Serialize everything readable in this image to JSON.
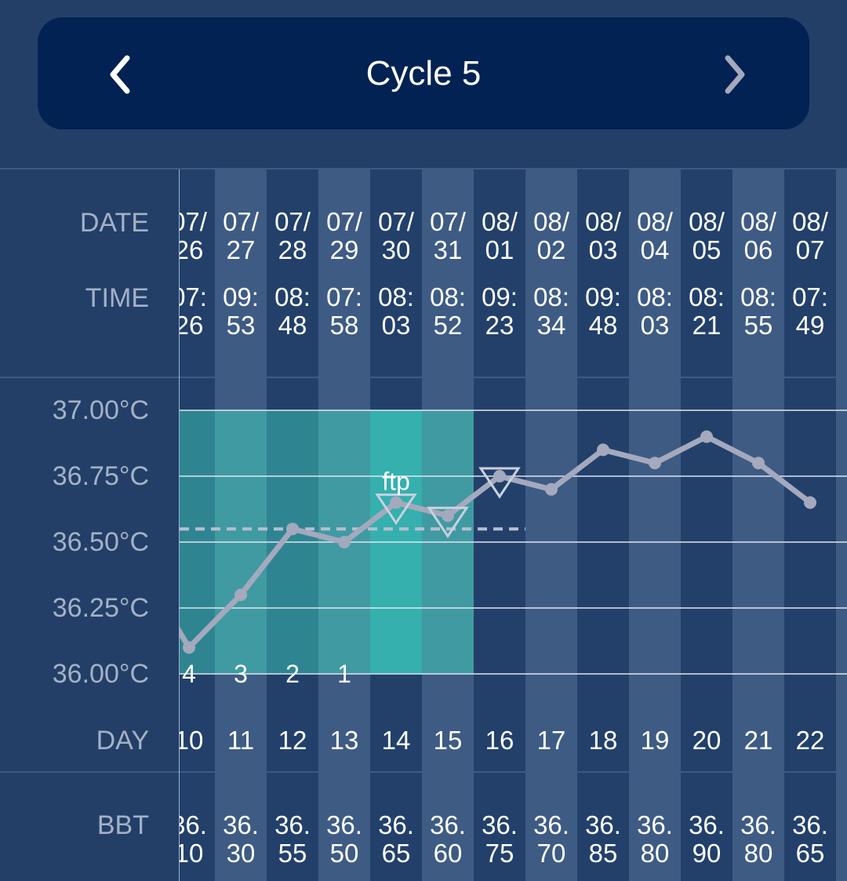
{
  "header": {
    "title": "Cycle 5",
    "prev_icon": "chevron-left-icon",
    "next_icon": "chevron-right-icon"
  },
  "row_labels": {
    "date": "DATE",
    "time": "TIME",
    "day": "DAY",
    "bbt": "BBT"
  },
  "columns": [
    {
      "date_top": "07/",
      "date_bottom": "26",
      "time_top": "07:",
      "time_bottom": "26",
      "day": "10",
      "bbt_top": "36.",
      "bbt_bottom": "10",
      "countdown": "4"
    },
    {
      "date_top": "07/",
      "date_bottom": "27",
      "time_top": "09:",
      "time_bottom": "53",
      "day": "11",
      "bbt_top": "36.",
      "bbt_bottom": "30",
      "countdown": "3"
    },
    {
      "date_top": "07/",
      "date_bottom": "28",
      "time_top": "08:",
      "time_bottom": "48",
      "day": "12",
      "bbt_top": "36.",
      "bbt_bottom": "55",
      "countdown": "2"
    },
    {
      "date_top": "07/",
      "date_bottom": "29",
      "time_top": "07:",
      "time_bottom": "58",
      "day": "13",
      "bbt_top": "36.",
      "bbt_bottom": "50",
      "countdown": "1"
    },
    {
      "date_top": "07/",
      "date_bottom": "30",
      "time_top": "08:",
      "time_bottom": "03",
      "day": "14",
      "bbt_top": "36.",
      "bbt_bottom": "65",
      "countdown": ""
    },
    {
      "date_top": "07/",
      "date_bottom": "31",
      "time_top": "08:",
      "time_bottom": "52",
      "day": "15",
      "bbt_top": "36.",
      "bbt_bottom": "60",
      "countdown": ""
    },
    {
      "date_top": "08/",
      "date_bottom": "01",
      "time_top": "09:",
      "time_bottom": "23",
      "day": "16",
      "bbt_top": "36.",
      "bbt_bottom": "75",
      "countdown": ""
    },
    {
      "date_top": "08/",
      "date_bottom": "02",
      "time_top": "08:",
      "time_bottom": "34",
      "day": "17",
      "bbt_top": "36.",
      "bbt_bottom": "70",
      "countdown": ""
    },
    {
      "date_top": "08/",
      "date_bottom": "03",
      "time_top": "09:",
      "time_bottom": "48",
      "day": "18",
      "bbt_top": "36.",
      "bbt_bottom": "85",
      "countdown": ""
    },
    {
      "date_top": "08/",
      "date_bottom": "04",
      "time_top": "08:",
      "time_bottom": "03",
      "day": "19",
      "bbt_top": "36.",
      "bbt_bottom": "80",
      "countdown": ""
    },
    {
      "date_top": "08/",
      "date_bottom": "05",
      "time_top": "08:",
      "time_bottom": "21",
      "day": "20",
      "bbt_top": "36.",
      "bbt_bottom": "90",
      "countdown": ""
    },
    {
      "date_top": "08/",
      "date_bottom": "06",
      "time_top": "08:",
      "time_bottom": "55",
      "day": "21",
      "bbt_top": "36.",
      "bbt_bottom": "80",
      "countdown": ""
    },
    {
      "date_top": "08/",
      "date_bottom": "07",
      "time_top": "07:",
      "time_bottom": "49",
      "day": "22",
      "bbt_top": "36.",
      "bbt_bottom": "65",
      "countdown": ""
    },
    {
      "date_top": "0",
      "date_bottom": "",
      "time_top": "",
      "time_bottom": "",
      "day": "",
      "bbt_top": "",
      "bbt_bottom": "",
      "countdown": ""
    }
  ],
  "chart_data": {
    "type": "line",
    "y_tick_labels": [
      "37.00°C",
      "36.75°C",
      "36.50°C",
      "36.25°C",
      "36.00°C"
    ],
    "y_ticks": [
      37.0,
      36.75,
      36.5,
      36.25,
      36.0
    ],
    "ylim": [
      36.0,
      37.0
    ],
    "series": [
      {
        "x": [
          10,
          11,
          12,
          13,
          14,
          15,
          16,
          17,
          18,
          19,
          20,
          21,
          22
        ],
        "values": [
          36.1,
          36.3,
          36.55,
          36.5,
          36.65,
          36.6,
          36.75,
          36.7,
          36.85,
          36.8,
          36.9,
          36.8,
          36.65
        ]
      }
    ],
    "cover_line": 36.55,
    "triangle_markers_days": [
      14,
      15,
      16
    ],
    "annotation": {
      "text": "ftp",
      "day": 14
    },
    "fertile_window_days": [
      10,
      11,
      12,
      13,
      14,
      15
    ],
    "colors": {
      "line": "#a4a9bd",
      "fertile_base": "#2e8591",
      "fertile_peak": "#35b0ae",
      "background": "#233f68",
      "header": "#012252"
    }
  }
}
